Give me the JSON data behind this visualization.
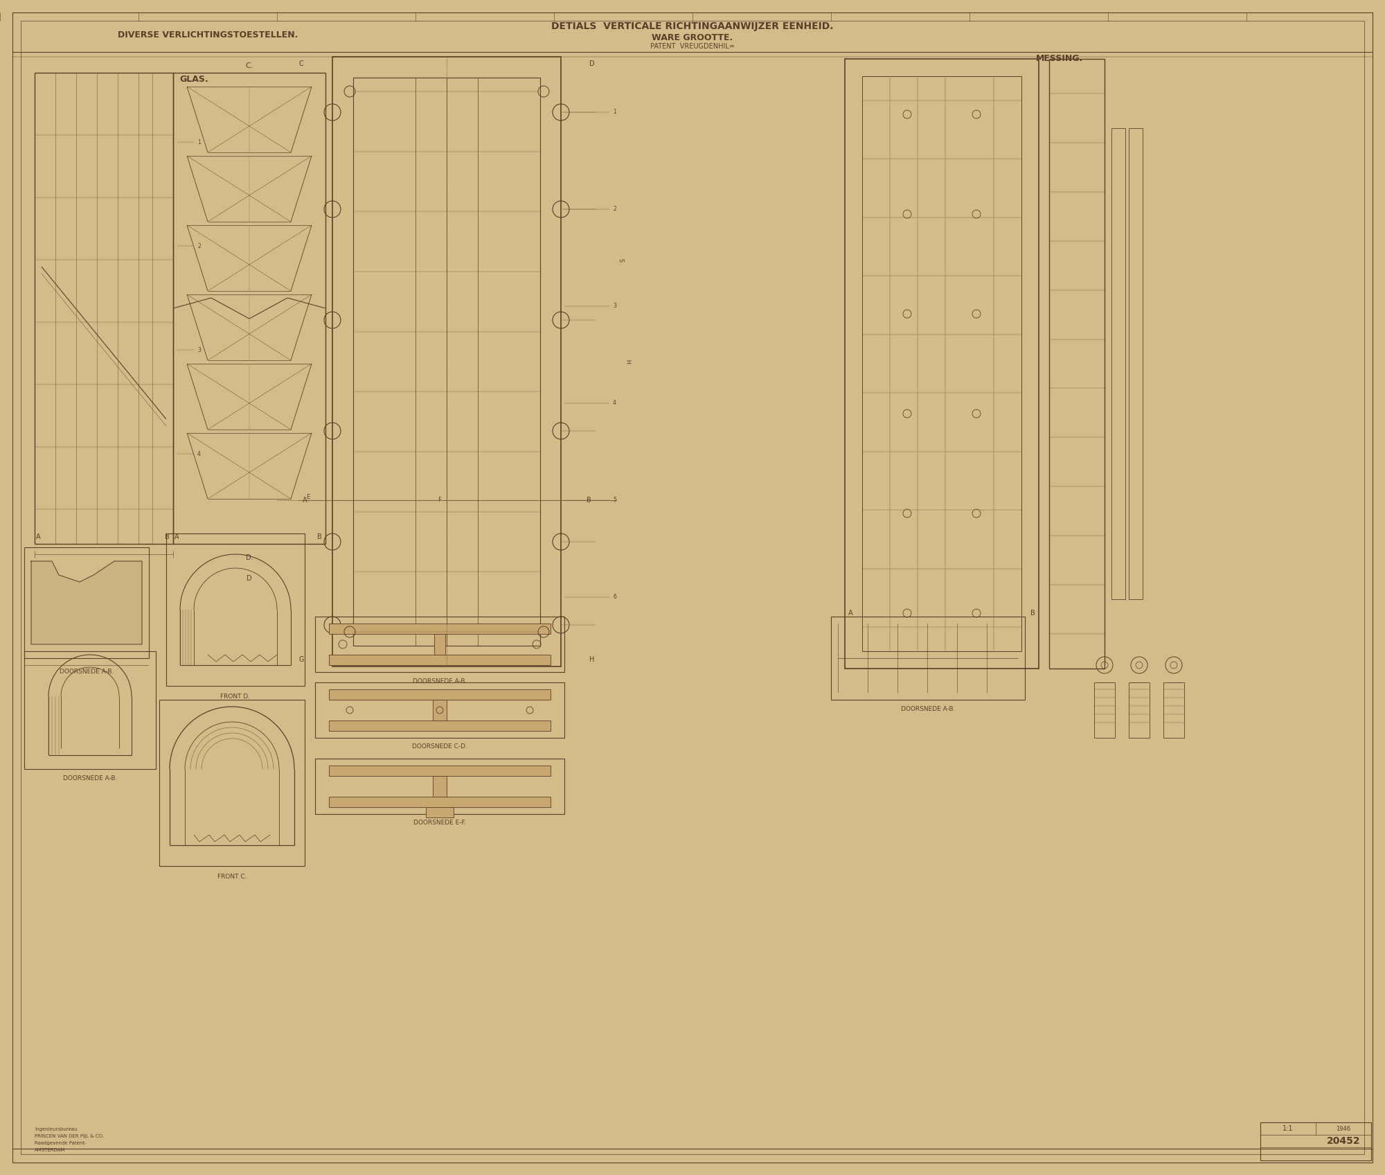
{
  "bg_color": "#d4bc8a",
  "paper_color": "#c9a96e",
  "line_color": "#5a3e28",
  "light_line_color": "#7a5a38",
  "border_color": "#5a3e28",
  "title_left": "DIVERSE VERLICHTINGSTOESTELLEN.",
  "title_center_1": "DETIALS  VERTICALE RICHTINGAANWIJZER EENHEID.",
  "title_center_2": "WARE GROOTTE.",
  "title_center_3": "PATENT  VREUGDENHIL=",
  "label_glas": "GLAS.",
  "label_messing": "MESSING.",
  "label_front_d": "FRONT D.",
  "label_front_c": "FRONT C.",
  "label_doorsnede_ab_1": "DOORSNEDE A-B.",
  "label_doorsnede_ab_2": "DOORSNEDE A-B.",
  "label_doorsnede_ab_3": "DOORSNEDE A-B.",
  "label_doorsnede_cd": "DOORSNEDE C-D.",
  "label_doorsnede_ef": "DOORSNEDE E-F.",
  "drawing_number": "20452",
  "fig_width": 20.0,
  "fig_height": 16.96
}
